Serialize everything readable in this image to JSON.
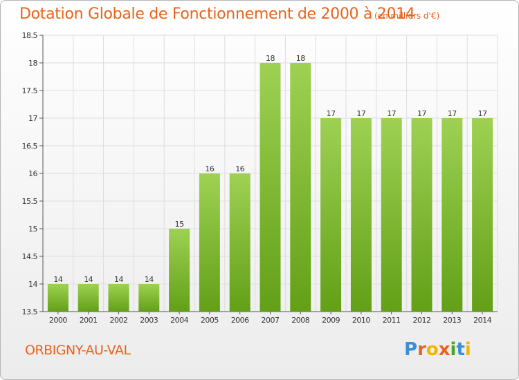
{
  "header": {
    "title": "Dotation Globale de Fonctionnement de 2000 à 2014",
    "subtitle": "(en milliers d'€)"
  },
  "footer": {
    "town": "ORBIGNY-AU-VAL",
    "logo": "Proxiti"
  },
  "colors": {
    "title": "#e8631c",
    "bar_top": "#9ed153",
    "bar_bottom": "#62a017",
    "grid": "#dddddd"
  },
  "chart_data": {
    "type": "bar",
    "title": "Dotation Globale de Fonctionnement de 2000 à 2014",
    "subtitle": "(en milliers d'€)",
    "categories": [
      "2000",
      "2001",
      "2002",
      "2003",
      "2004",
      "2005",
      "2006",
      "2007",
      "2008",
      "2009",
      "2010",
      "2011",
      "2012",
      "2013",
      "2014"
    ],
    "values": [
      14,
      14,
      14,
      14,
      15,
      16,
      16,
      18,
      18,
      17,
      17,
      17,
      17,
      17,
      17
    ],
    "data_labels": [
      "14",
      "14",
      "14",
      "14",
      "15",
      "16",
      "16",
      "18",
      "18",
      "17",
      "17",
      "17",
      "17",
      "17",
      "17"
    ],
    "ylim": [
      13.5,
      18.5
    ],
    "yticks": [
      13.5,
      14,
      14.5,
      15,
      15.5,
      16,
      16.5,
      17,
      17.5,
      18,
      18.5
    ],
    "ytick_labels": [
      "13.5",
      "14",
      "14.5",
      "15",
      "15.5",
      "16",
      "16.5",
      "17",
      "17.5",
      "18",
      "18.5"
    ],
    "xlabel": "",
    "ylabel": "",
    "grid": true
  }
}
